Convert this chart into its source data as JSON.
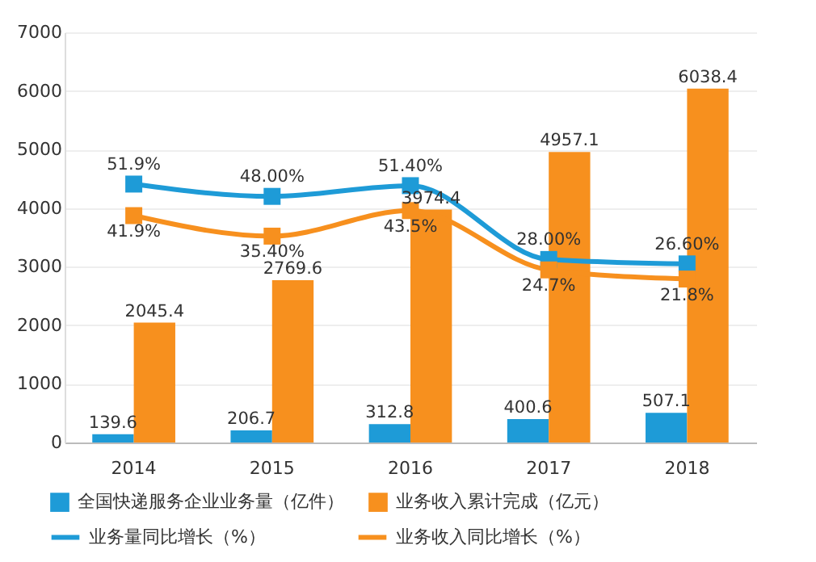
{
  "chart_data": {
    "type": "bar",
    "categories": [
      "2014",
      "2015",
      "2016",
      "2017",
      "2018"
    ],
    "ylim": [
      0,
      7000
    ],
    "yticks": [
      0,
      1000,
      2000,
      3000,
      4000,
      5000,
      6000,
      7000
    ],
    "y2lim": [
      -30,
      100
    ],
    "grid": "y",
    "legend": "bottom",
    "data_labels": true,
    "marker": "square",
    "series": [
      {
        "name": "全国快递服务企业业务量（亿件）",
        "color": "#1e9bd7",
        "values": [
          139.6,
          206.7,
          312.8,
          400.6,
          507.1
        ]
      },
      {
        "name": "业务收入累计完成（亿元）",
        "color": "#f7901e",
        "values": [
          2045.4,
          2769.6,
          3974.4,
          4957.1,
          6038.4
        ]
      },
      {
        "name": "业务量同比增长（%）",
        "type": "line",
        "axis": "y2",
        "color": "#1e9bd7",
        "values": [
          51.9,
          48,
          51.4,
          28,
          26.6
        ],
        "value_labels": [
          "51.9%",
          "48.00%",
          "51.40%",
          "28.00%",
          "26.60%"
        ]
      },
      {
        "name": "业务收入同比增长（%）",
        "type": "line",
        "axis": "y2",
        "color": "#f7901e",
        "values": [
          41.9,
          35.4,
          43.5,
          24.7,
          21.8
        ],
        "value_labels": [
          "41.9%",
          "35.40%",
          "43.5%",
          "24.7%",
          "21.8%"
        ]
      }
    ]
  }
}
